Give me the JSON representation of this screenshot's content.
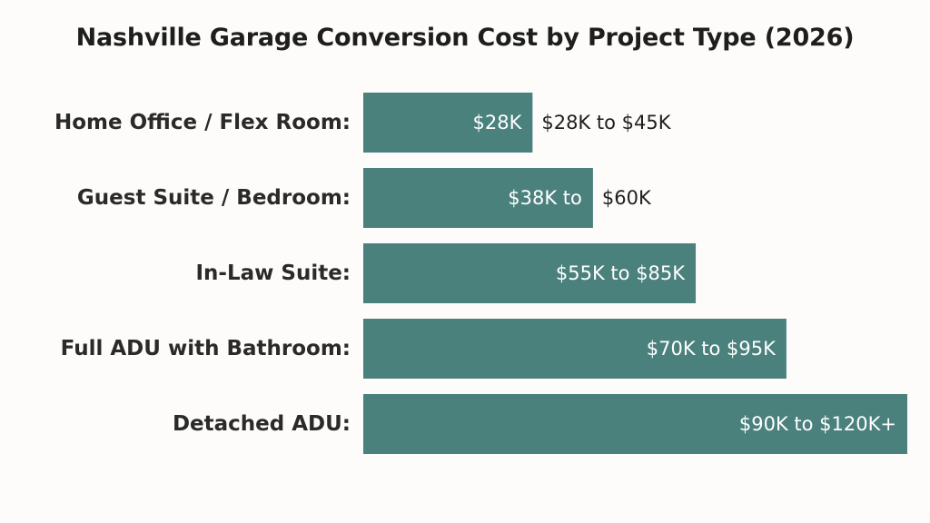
{
  "chart_data": {
    "type": "bar",
    "orientation": "horizontal",
    "title": "Nashville Garage Conversion Cost by Project Type (2026)",
    "xlabel": "",
    "ylabel": "",
    "categories": [
      "Home Office / Flex Room:",
      "Guest Suite / Bedroom:",
      "In-Law Suite:",
      "Full ADU with Bathroom:",
      "Detached ADU:"
    ],
    "values": [
      28000,
      38000,
      55000,
      70000,
      90000
    ],
    "xlim": [
      0,
      90000
    ],
    "grid": false,
    "legend": "none",
    "bar_color": "#4a817d",
    "data_labels": [
      {
        "inside": "$28K",
        "outside": "$28K to $45K"
      },
      {
        "inside": "$38K to",
        "outside": "$60K"
      },
      {
        "inside": "$55K to $85K",
        "outside": ""
      },
      {
        "inside": "$70K to $95K",
        "outside": ""
      },
      {
        "inside": "$90K to $120K+",
        "outside": ""
      }
    ]
  }
}
